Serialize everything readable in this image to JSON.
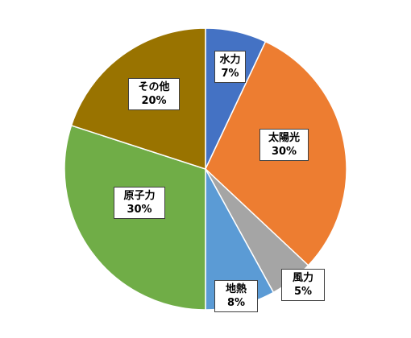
{
  "chart_data": {
    "type": "pie",
    "title": "",
    "start_angle_deg": 0,
    "direction": "clockwise",
    "slices": [
      {
        "name": "水力",
        "value": 7,
        "label": "7%",
        "color": "#4472C4"
      },
      {
        "name": "太陽光",
        "value": 30,
        "label": "30%",
        "color": "#ED7D31"
      },
      {
        "name": "風力",
        "value": 5,
        "label": "5%",
        "color": "#A5A5A5"
      },
      {
        "name": "地熱",
        "value": 8,
        "label": "8%",
        "color": "#5B9BD5"
      },
      {
        "name": "原子力",
        "value": 30,
        "label": "30%",
        "color": "#70AD47"
      },
      {
        "name": "その他",
        "value": 20,
        "label": "20%",
        "color": "#997300"
      }
    ]
  }
}
